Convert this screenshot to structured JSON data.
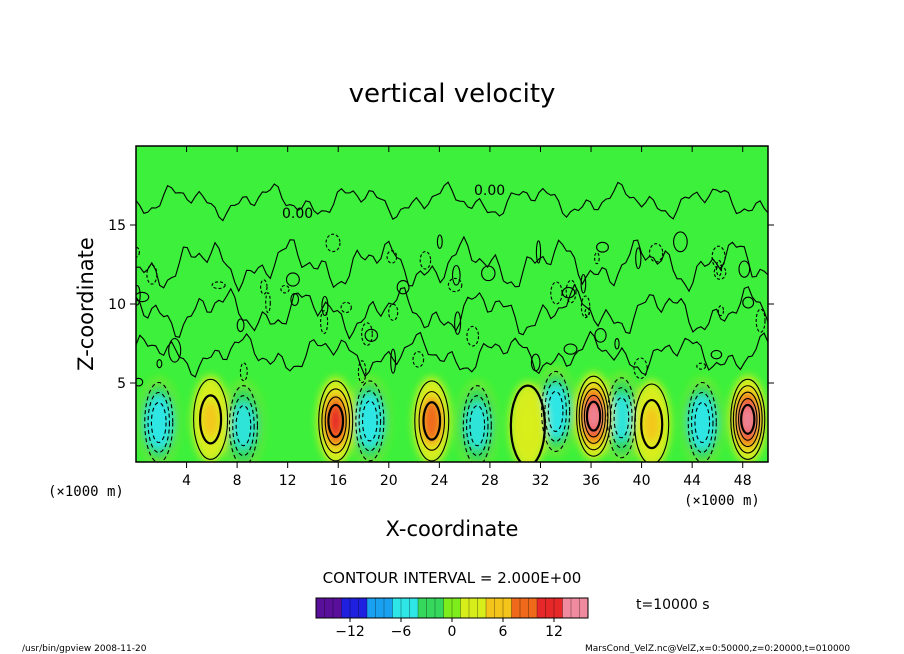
{
  "chart_data": {
    "type": "heatmap",
    "title": "vertical velocity",
    "xlabel": "X-coordinate",
    "ylabel": "Z-coordinate",
    "x_unit": "(×1000 m)",
    "y_unit": "(×1000 m)",
    "xlim": [
      0,
      50
    ],
    "ylim": [
      0,
      20
    ],
    "x_ticks": [
      "4",
      "8",
      "12",
      "16",
      "20",
      "24",
      "28",
      "32",
      "36",
      "40",
      "44",
      "48"
    ],
    "y_ticks": [
      "5",
      "10",
      "15"
    ],
    "contour_interval_text": "CONTOUR INTERVAL = 2.000E+00",
    "contour_labels": [
      "0.00",
      "0.00"
    ],
    "time_label": "t=10000 s",
    "colorbar": {
      "range": [
        -16,
        16
      ],
      "ticks": [
        "−12",
        "−6",
        "0",
        "6",
        "12"
      ],
      "colors": [
        "#5a0f9a",
        "#1f1fe0",
        "#1aa0f0",
        "#2ee6e6",
        "#35d85c",
        "#7ded1c",
        "#d8ee1a",
        "#f5c41a",
        "#ee6a1a",
        "#e62828",
        "#f08a9e"
      ]
    },
    "field_background_color": "#3cf03c",
    "updrafts": [
      {
        "x": 5.9,
        "z": 2.7,
        "peak": 6
      },
      {
        "x": 15.8,
        "z": 2.6,
        "peak": 12
      },
      {
        "x": 23.4,
        "z": 2.6,
        "peak": 10
      },
      {
        "x": 31.0,
        "z": 2.3,
        "peak": 4
      },
      {
        "x": 36.2,
        "z": 2.9,
        "peak": 14
      },
      {
        "x": 40.8,
        "z": 2.4,
        "peak": 6
      },
      {
        "x": 48.4,
        "z": 2.7,
        "peak": 14
      }
    ],
    "downdrafts": [
      {
        "x": 1.8,
        "z": 2.5,
        "peak": -8
      },
      {
        "x": 8.5,
        "z": 2.3,
        "peak": -6
      },
      {
        "x": 18.5,
        "z": 2.6,
        "peak": -8
      },
      {
        "x": 27.0,
        "z": 2.3,
        "peak": -6
      },
      {
        "x": 33.2,
        "z": 3.2,
        "peak": -8
      },
      {
        "x": 38.4,
        "z": 2.8,
        "peak": -6
      },
      {
        "x": 44.8,
        "z": 2.5,
        "peak": -8
      }
    ]
  },
  "footer": {
    "left": "/usr/bin/gpview   2008-11-20",
    "right": "MarsCond_VelZ.nc@VelZ,x=0:50000,z=0:20000,t=010000"
  }
}
